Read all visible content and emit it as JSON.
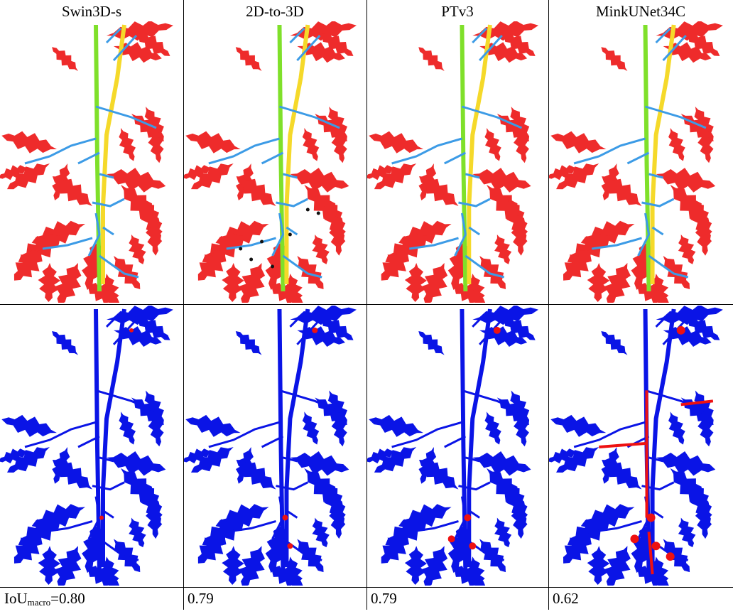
{
  "columns": [
    {
      "header": "Swin3D-s",
      "score": "=0.80",
      "score_prefix": "IoU",
      "score_sub": "macro"
    },
    {
      "header": "2D-to-3D",
      "score": "0.79"
    },
    {
      "header": "PTv3",
      "score": "0.79"
    },
    {
      "header": "MinkUNet34C",
      "score": "0.62"
    }
  ],
  "colors": {
    "leaf": "#ee2b2b",
    "main_stem": "#7fe02a",
    "side_stem": "#f5d92a",
    "petiole": "#3c9be6",
    "error_correct": "#0a14e6",
    "error_wrong": "#ee1111",
    "unlabeled": "#111111"
  },
  "rows": [
    "segmentation-prediction",
    "error-map"
  ]
}
